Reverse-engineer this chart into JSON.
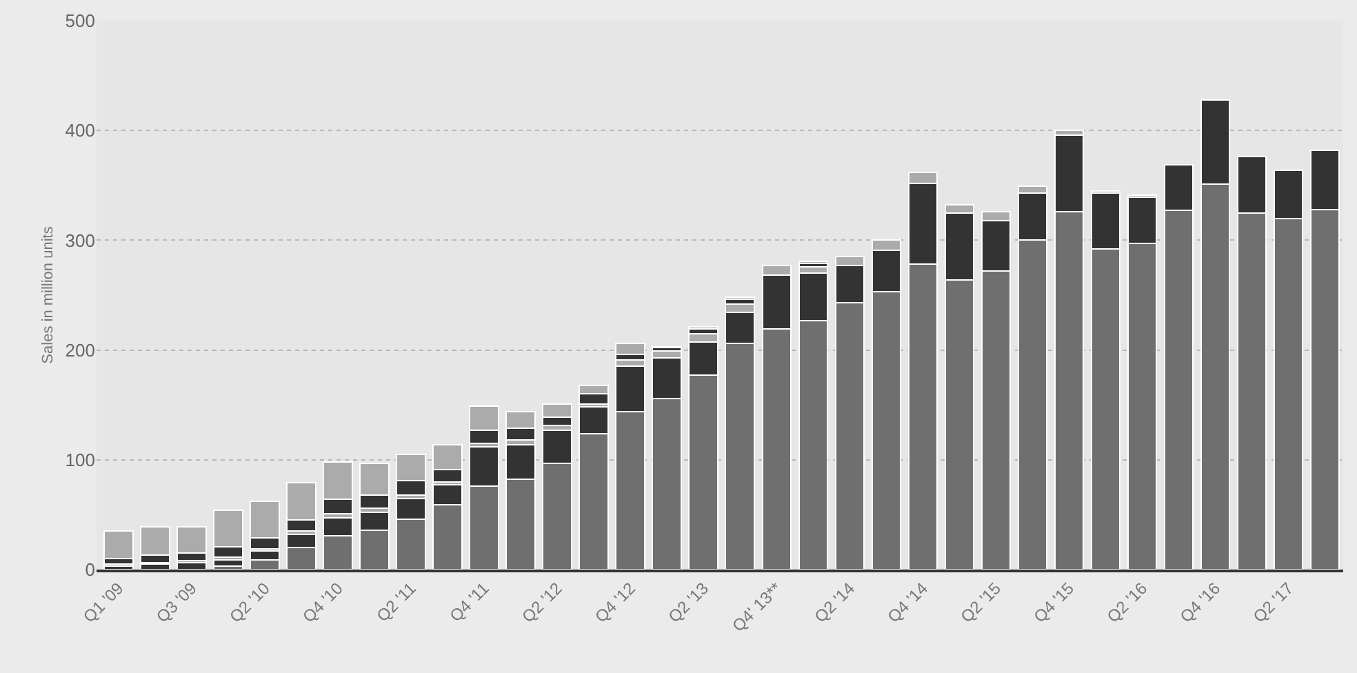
{
  "chart_data": {
    "type": "bar",
    "stacked": true,
    "ylabel": "Sales in million units",
    "categories": [
      "Q1 '09",
      null,
      "Q3 '09",
      null,
      "Q2 '10",
      null,
      "Q4 '10",
      null,
      "Q2 '11",
      null,
      "Q4 '11",
      null,
      "Q2 '12",
      null,
      "Q4 '12",
      null,
      "Q2 '13",
      null,
      "Q4' 13**",
      null,
      "Q2 '14",
      null,
      "Q4 '14",
      null,
      "Q2 '15",
      null,
      "Q4 '15",
      null,
      "Q2 '16",
      null,
      "Q4 '16",
      null,
      "Q2 '17",
      null
    ],
    "series": [
      {
        "color": "#6f6f6f",
        "values": [
          null,
          null,
          null,
          3,
          9,
          20,
          31,
          36,
          46,
          59,
          76,
          82,
          97,
          124,
          144,
          156,
          177,
          206,
          219,
          227,
          243,
          253,
          278,
          264,
          272,
          300,
          326,
          292,
          297,
          327,
          351,
          325,
          320,
          328
        ]
      },
      {
        "color": "#333333",
        "values": [
          3,
          5,
          6,
          6,
          8,
          12,
          16,
          16,
          19,
          18,
          36,
          32,
          30,
          24,
          41,
          37,
          30,
          28,
          49,
          43,
          34,
          38,
          74,
          61,
          46,
          43,
          70,
          51,
          42,
          42,
          77,
          51,
          44,
          54
        ]
      },
      {
        "color": "#ababab",
        "values": [
          2,
          1,
          2,
          2,
          2,
          3,
          4,
          4,
          3,
          3,
          3,
          4,
          4,
          3,
          6,
          6,
          8,
          8,
          9,
          6,
          8,
          9,
          10,
          7,
          8,
          6,
          4,
          2,
          2,
          0,
          0,
          0,
          0,
          0
        ]
      },
      {
        "color": "#333333",
        "values": [
          5,
          7,
          7,
          10,
          10,
          10,
          13,
          12,
          13,
          11,
          12,
          11,
          8,
          9,
          5,
          3,
          4,
          4,
          0,
          3,
          0,
          0,
          0,
          0,
          0,
          0,
          0,
          0,
          0,
          0,
          0,
          0,
          0,
          0
        ]
      },
      {
        "color": "#ababab",
        "values": [
          25,
          26,
          24,
          33,
          33,
          34,
          34,
          29,
          24,
          23,
          22,
          15,
          12,
          8,
          10,
          1,
          2,
          2,
          0,
          2,
          0,
          0,
          0,
          0,
          0,
          0,
          0,
          0,
          0,
          0,
          0,
          0,
          0,
          0
        ]
      }
    ],
    "ylim": [
      0,
      500
    ],
    "yticks": [
      0,
      100,
      200,
      300,
      400,
      500
    ],
    "grid": "y"
  }
}
